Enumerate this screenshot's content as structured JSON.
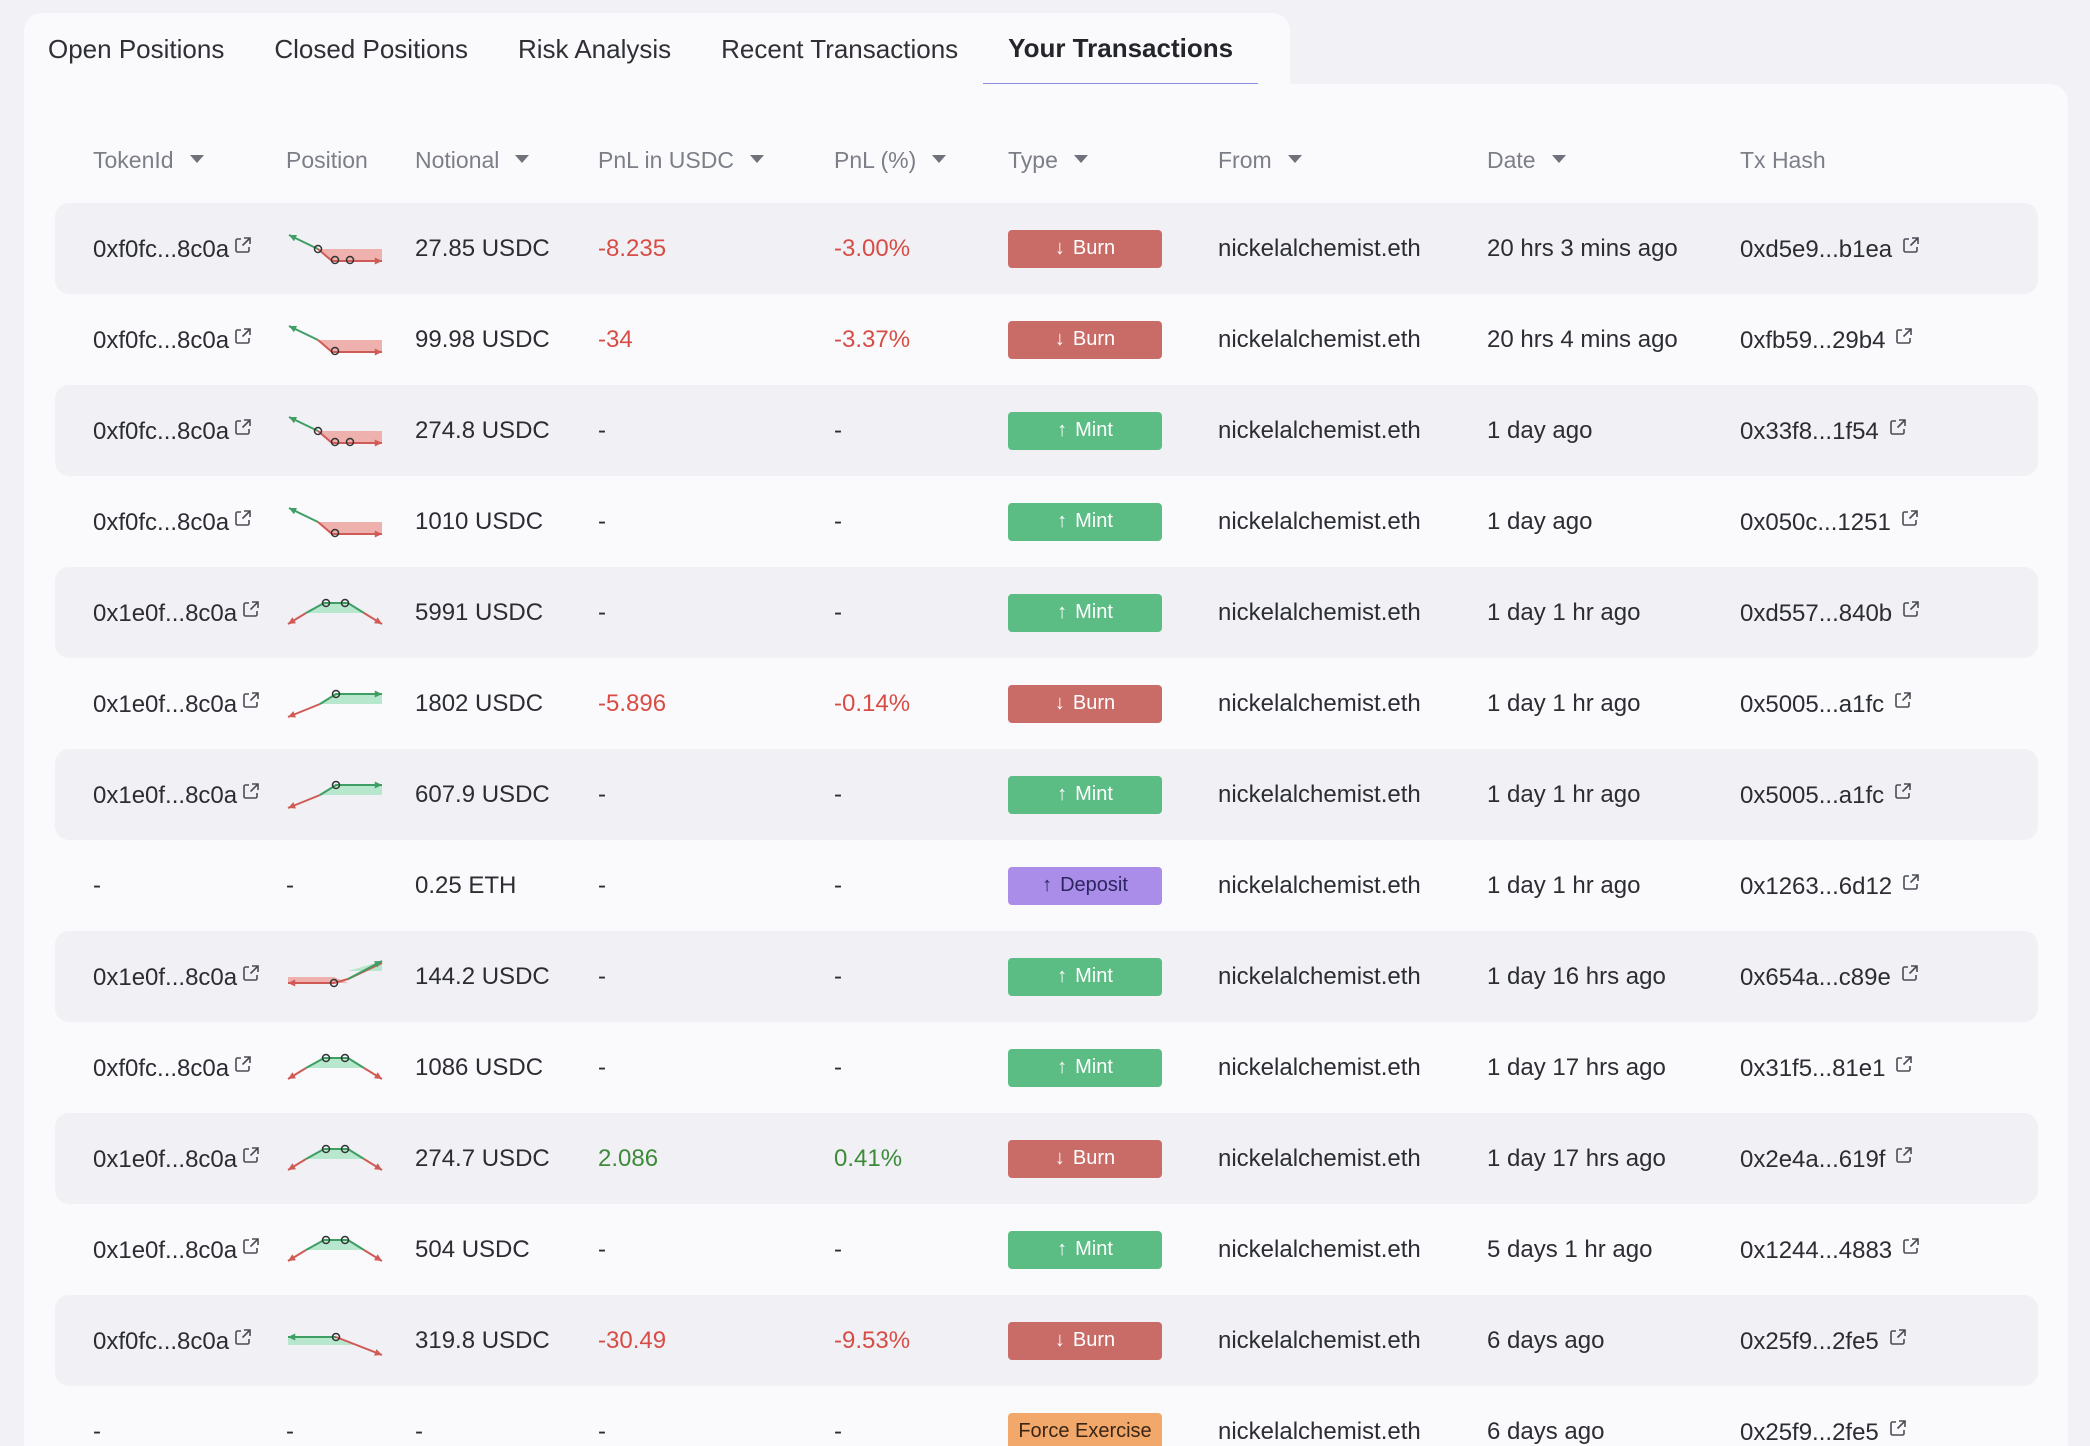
{
  "tabs": [
    {
      "label": "Open Positions",
      "active": false
    },
    {
      "label": "Closed Positions",
      "active": false
    },
    {
      "label": "Risk Analysis",
      "active": false
    },
    {
      "label": "Recent Transactions",
      "active": false
    },
    {
      "label": "Your Transactions",
      "active": true
    }
  ],
  "columns": [
    {
      "label": "TokenId",
      "sortable": true
    },
    {
      "label": "Position",
      "sortable": false
    },
    {
      "label": "Notional",
      "sortable": true
    },
    {
      "label": "PnL in USDC",
      "sortable": true
    },
    {
      "label": "PnL (%)",
      "sortable": true
    },
    {
      "label": "Type",
      "sortable": true
    },
    {
      "label": "From",
      "sortable": true
    },
    {
      "label": "Date",
      "sortable": true
    },
    {
      "label": "Tx Hash",
      "sortable": false
    }
  ],
  "colors": {
    "burn": "#c96c68",
    "mint": "#5cbd84",
    "deposit": "#a98de9",
    "force_exercise": "#f2a86a",
    "negative": "#d84c46",
    "positive": "#3c8a3a",
    "tab_underline": "#8a8ee2"
  },
  "rows": [
    {
      "token": "0xf0fc...8c0a",
      "token_link": true,
      "chart": "down-three",
      "notional": "27.85 USDC",
      "pnl_usdc": "-8.235",
      "pnl_pct": "-3.00%",
      "pnl_sign": "neg",
      "type": "Burn",
      "type_kind": "burn",
      "type_arrow": "↓",
      "from": "nickelalchemist.eth",
      "date": "20 hrs 3 mins ago",
      "hash": "0xd5e9...b1ea"
    },
    {
      "token": "0xf0fc...8c0a",
      "token_link": true,
      "chart": "down-one",
      "notional": "99.98 USDC",
      "pnl_usdc": "-34",
      "pnl_pct": "-3.37%",
      "pnl_sign": "neg",
      "type": "Burn",
      "type_kind": "burn",
      "type_arrow": "↓",
      "from": "nickelalchemist.eth",
      "date": "20 hrs 4 mins ago",
      "hash": "0xfb59...29b4"
    },
    {
      "token": "0xf0fc...8c0a",
      "token_link": true,
      "chart": "down-three",
      "notional": "274.8 USDC",
      "pnl_usdc": "-",
      "pnl_pct": "-",
      "pnl_sign": "none",
      "type": "Mint",
      "type_kind": "mint",
      "type_arrow": "↑",
      "from": "nickelalchemist.eth",
      "date": "1 day ago",
      "hash": "0x33f8...1f54"
    },
    {
      "token": "0xf0fc...8c0a",
      "token_link": true,
      "chart": "down-one",
      "notional": "1010 USDC",
      "pnl_usdc": "-",
      "pnl_pct": "-",
      "pnl_sign": "none",
      "type": "Mint",
      "type_kind": "mint",
      "type_arrow": "↑",
      "from": "nickelalchemist.eth",
      "date": "1 day ago",
      "hash": "0x050c...1251"
    },
    {
      "token": "0x1e0f...8c0a",
      "token_link": true,
      "chart": "tent-two",
      "notional": "5991 USDC",
      "pnl_usdc": "-",
      "pnl_pct": "-",
      "pnl_sign": "none",
      "type": "Mint",
      "type_kind": "mint",
      "type_arrow": "↑",
      "from": "nickelalchemist.eth",
      "date": "1 day 1 hr ago",
      "hash": "0xd557...840b"
    },
    {
      "token": "0x1e0f...8c0a",
      "token_link": true,
      "chart": "up-one",
      "notional": "1802 USDC",
      "pnl_usdc": "-5.896",
      "pnl_pct": "-0.14%",
      "pnl_sign": "neg",
      "type": "Burn",
      "type_kind": "burn",
      "type_arrow": "↓",
      "from": "nickelalchemist.eth",
      "date": "1 day 1 hr ago",
      "hash": "0x5005...a1fc"
    },
    {
      "token": "0x1e0f...8c0a",
      "token_link": true,
      "chart": "up-one",
      "notional": "607.9 USDC",
      "pnl_usdc": "-",
      "pnl_pct": "-",
      "pnl_sign": "none",
      "type": "Mint",
      "type_kind": "mint",
      "type_arrow": "↑",
      "from": "nickelalchemist.eth",
      "date": "1 day 1 hr ago",
      "hash": "0x5005...a1fc"
    },
    {
      "token": "-",
      "token_link": false,
      "chart": "none",
      "position_text": "-",
      "notional": "0.25 ETH",
      "pnl_usdc": "-",
      "pnl_pct": "-",
      "pnl_sign": "none",
      "type": "Deposit",
      "type_kind": "deposit",
      "type_arrow": "↑",
      "from": "nickelalchemist.eth",
      "date": "1 day 1 hr ago",
      "hash": "0x1263...6d12"
    },
    {
      "token": "0x1e0f...8c0a",
      "token_link": true,
      "chart": "valley-up",
      "notional": "144.2 USDC",
      "pnl_usdc": "-",
      "pnl_pct": "-",
      "pnl_sign": "none",
      "type": "Mint",
      "type_kind": "mint",
      "type_arrow": "↑",
      "from": "nickelalchemist.eth",
      "date": "1 day 16 hrs ago",
      "hash": "0x654a...c89e"
    },
    {
      "token": "0xf0fc...8c0a",
      "token_link": true,
      "chart": "tent-two",
      "notional": "1086 USDC",
      "pnl_usdc": "-",
      "pnl_pct": "-",
      "pnl_sign": "none",
      "type": "Mint",
      "type_kind": "mint",
      "type_arrow": "↑",
      "from": "nickelalchemist.eth",
      "date": "1 day 17 hrs ago",
      "hash": "0x31f5...81e1"
    },
    {
      "token": "0x1e0f...8c0a",
      "token_link": true,
      "chart": "tent-two",
      "notional": "274.7 USDC",
      "pnl_usdc": "2.086",
      "pnl_pct": "0.41%",
      "pnl_sign": "pos",
      "type": "Burn",
      "type_kind": "burn",
      "type_arrow": "↓",
      "from": "nickelalchemist.eth",
      "date": "1 day 17 hrs ago",
      "hash": "0x2e4a...619f"
    },
    {
      "token": "0x1e0f...8c0a",
      "token_link": true,
      "chart": "tent-two",
      "notional": "504 USDC",
      "pnl_usdc": "-",
      "pnl_pct": "-",
      "pnl_sign": "none",
      "type": "Mint",
      "type_kind": "mint",
      "type_arrow": "↑",
      "from": "nickelalchemist.eth",
      "date": "5 days 1 hr ago",
      "hash": "0x1244...4883"
    },
    {
      "token": "0xf0fc...8c0a",
      "token_link": true,
      "chart": "flat-down",
      "notional": "319.8 USDC",
      "pnl_usdc": "-30.49",
      "pnl_pct": "-9.53%",
      "pnl_sign": "neg",
      "type": "Burn",
      "type_kind": "burn",
      "type_arrow": "↓",
      "from": "nickelalchemist.eth",
      "date": "6 days ago",
      "hash": "0x25f9...2fe5"
    },
    {
      "token": "-",
      "token_link": false,
      "chart": "none",
      "position_text": "-",
      "notional": "-",
      "pnl_usdc": "-",
      "pnl_pct": "-",
      "pnl_sign": "none",
      "type": "Force Exercise",
      "type_kind": "force",
      "type_arrow": "",
      "from": "nickelalchemist.eth",
      "date": "6 days ago",
      "hash": "0x25f9...2fe5"
    }
  ]
}
